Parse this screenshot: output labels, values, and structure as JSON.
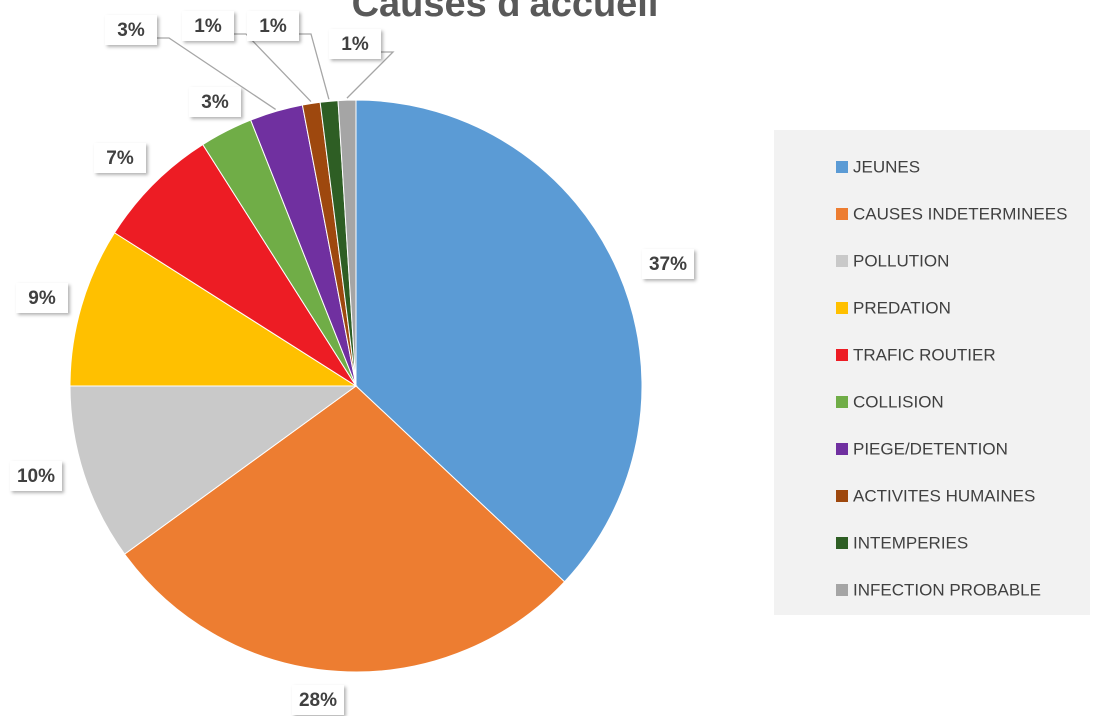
{
  "chart_data": {
    "type": "pie",
    "title": "Causes d'accueil",
    "categories": [
      "JEUNES",
      "CAUSES INDETERMINEES",
      "POLLUTION",
      "PREDATION",
      "TRAFIC ROUTIER",
      "COLLISION",
      "PIEGE/DETENTION",
      "ACTIVITES HUMAINES",
      "INTEMPERIES",
      "INFECTION PROBABLE"
    ],
    "values": [
      37,
      28,
      10,
      9,
      7,
      3,
      3,
      1,
      1,
      1
    ],
    "value_labels": [
      "37%",
      "28%",
      "10%",
      "9%",
      "7%",
      "3%",
      "3%",
      "1%",
      "1%",
      "1%"
    ],
    "colors": [
      "#5b9bd5",
      "#ed7d31",
      "#c9c9c9",
      "#ffc000",
      "#ed1c24",
      "#70ad47",
      "#7030a0",
      "#9e480e",
      "#2e5e24",
      "#a5a5a5"
    ],
    "legend": "right"
  }
}
